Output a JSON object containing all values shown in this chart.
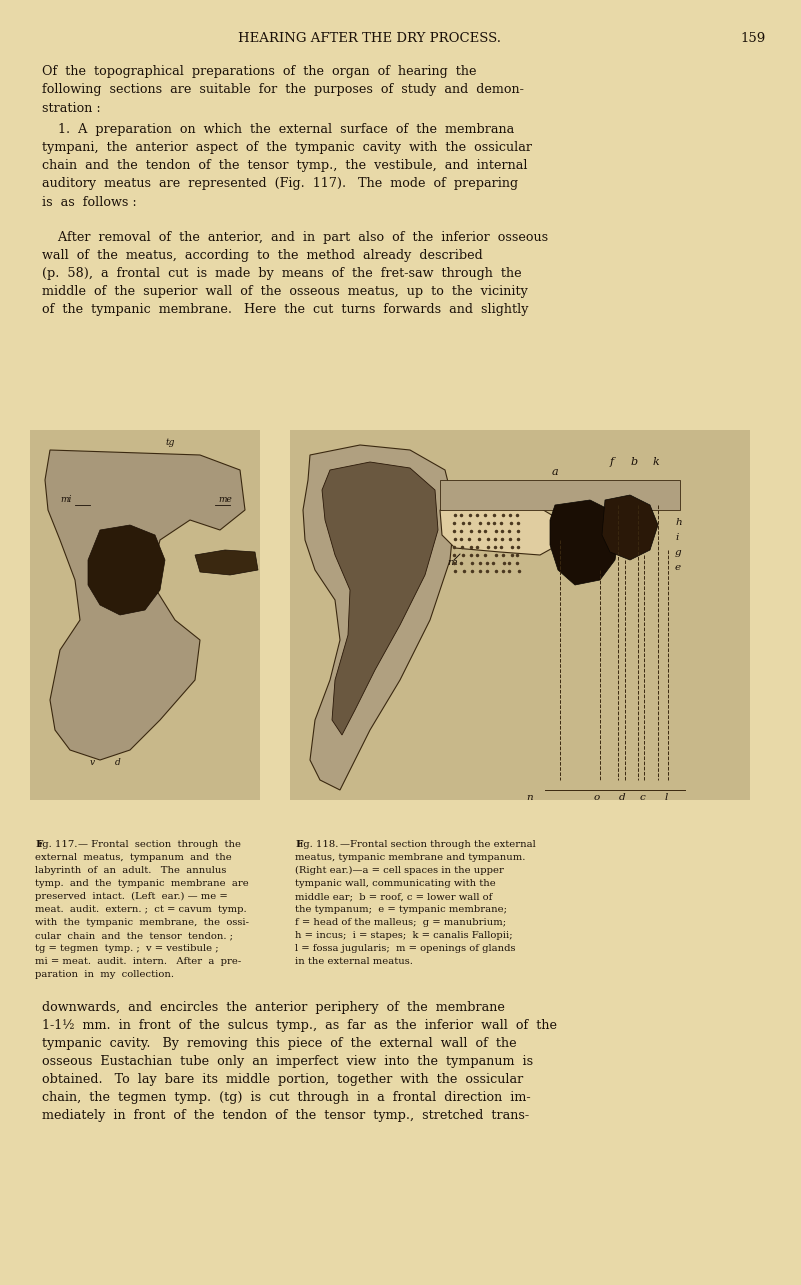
{
  "bg_color": "#e8d9a8",
  "page_color": "#dfd0a0",
  "text_color": "#1a1008",
  "header": "HEARING AFTER THE DRY PROCESS.",
  "page_num": "159",
  "para1": "Of  the  topographical  preparations  of  the  organ  of  hearing  the\nfollowing  sections  are  suitable  for  the  purposes  of  study  and  demon-\nstration :",
  "para2": "    1.  A  preparation  on  which  the  external  surface  of  the  membrana\ntympani,  the  anterior  aspect  of  the  tympanic  cavity  with  the  ossicular\nchain  and  the  tendon  of  the  tensor  tymp.,  the  vestibule,  and  internal\nauditory  meatus  are  represented  (Fig.  117).   The  mode  of  preparing\nis  as  follows :",
  "para3": "    After  removal  of  the  anterior,  and  in  part  also  of  the  inferior  osseous\nwall  of  the  meatus,  according  to  the  method  already  described\n(p.  58),  a  frontal  cut  is  made  by  means  of  the  fret-saw  through  the\nmiddle  of  the  superior  wall  of  the  osseous  meatus,  up  to  the  vicinity\nof  the  tympanic  membrane.   Here  the  cut  turns  forwards  and  slightly",
  "caption117": "Fig. 117. — Frontal  section  through  the\nexternal  meatus,  tympanum  and  the\nlabyrinth  of  an  adult.   The  annulus\ntymp.  and  the  tympanic  membrane  are\npreserved  intact.  (Left  ear.) — me =\nmeat.  audit.  extern. ;  ct = cavum  tymp.\nwith  the  tympanic  membrane,  the  ossi-\ncular  chain  and  the  tensor  tendon. ;\ntg = tegmen  tymp. ;  v = vestibule ;\nmi = meat.  audit.  intern.   After  a  pre-\nparation  in  my  collection.",
  "caption118": "Fig. 118.—Frontal section through the external\nmeatus, tympanic membrane and tympanum.\n(Right ear.)—a = cell spaces in the upper\ntympanic wall, communicating with the\nmiddle ear; b = roof, c = lower wall of\nthe tympanum; e = tympanic membrane;\nf = head of the malleus; g = manubrium;\nh = incus;  i = stapes;  k = canalis Fallopii;\nl = fossa jugularis;  m = openings of glands\nin the external meatus.",
  "para_bottom1": "downwards,  and  encircles  the  anterior  periphery  of  the  membrane\n1-1½  mm.  in  front  of  the  sulcus  tymp.,  as  far  as  the  inferior  wall  of  the\ntympanic  cavity.   By  removing  this  piece  of  the  external  wall  of  the\nosseous  Eustachian  tube  only  an  imperfect  view  into  the  tympanum  is\nobtained.   To  lay  bare  its  middle  portion,  together  with  the  ossicular\nchain,  the  tegmen  tymp.  (tg)  is  cut  through  in  a  frontal  direction  im-\nmediately  in  front  of  the  tendon  of  the  tensor  tymp.,  stretched  trans-"
}
